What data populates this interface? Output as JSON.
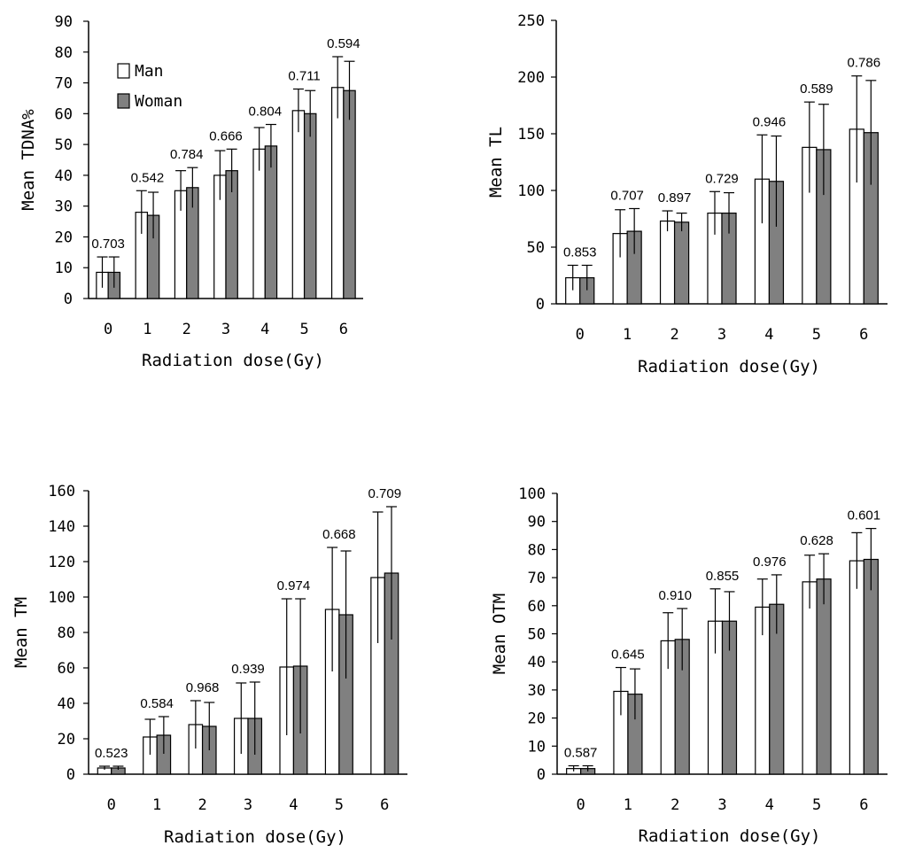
{
  "figure": {
    "colors": {
      "man_fill": "#ffffff",
      "woman_fill": "#808080",
      "stroke": "#000000"
    },
    "legend": [
      "Man",
      "Woman"
    ]
  },
  "chart_data": [
    {
      "type": "bar",
      "title": "",
      "xlabel": "Radiation dose(Gy)",
      "ylabel": "Mean TDNA%",
      "categories": [
        "0",
        "1",
        "2",
        "3",
        "4",
        "5",
        "6"
      ],
      "ylim": [
        0,
        90
      ],
      "yticks": [
        0,
        10,
        20,
        30,
        40,
        50,
        60,
        70,
        80,
        90
      ],
      "series": [
        {
          "name": "Man",
          "values": [
            8.5,
            28,
            35,
            40,
            48.5,
            61,
            68.5
          ],
          "errors": [
            5,
            7,
            6.5,
            8,
            7,
            7,
            10
          ]
        },
        {
          "name": "Woman",
          "values": [
            8.5,
            27,
            36,
            41.5,
            49.5,
            60,
            67.5
          ],
          "errors": [
            5,
            7.5,
            6.5,
            7,
            7,
            7.5,
            9.5
          ]
        }
      ],
      "p_values": [
        "0.703",
        "0.542",
        "0.784",
        "0.666",
        "0.804",
        "0.711",
        "0.594"
      ],
      "legend_position": "top-left"
    },
    {
      "type": "bar",
      "title": "",
      "xlabel": "Radiation dose(Gy)",
      "ylabel": "Mean TL",
      "categories": [
        "0",
        "1",
        "2",
        "3",
        "4",
        "5",
        "6"
      ],
      "ylim": [
        0,
        250
      ],
      "yticks": [
        0,
        50,
        100,
        150,
        200,
        250
      ],
      "series": [
        {
          "name": "Man",
          "values": [
            23,
            62,
            73,
            80,
            110,
            138,
            154
          ],
          "errors": [
            11,
            21,
            9,
            19,
            39,
            40,
            47
          ]
        },
        {
          "name": "Woman",
          "values": [
            23,
            64,
            72,
            80,
            108,
            136,
            151
          ],
          "errors": [
            11,
            20,
            8,
            18,
            40,
            40,
            46
          ]
        }
      ],
      "p_values": [
        "0.853",
        "0.707",
        "0.897",
        "0.729",
        "0.946",
        "0.589",
        "0.786"
      ]
    },
    {
      "type": "bar",
      "title": "",
      "xlabel": "Radiation dose(Gy)",
      "ylabel": "Mean TM",
      "categories": [
        "0",
        "1",
        "2",
        "3",
        "4",
        "5",
        "6"
      ],
      "ylim": [
        0,
        160
      ],
      "yticks": [
        0,
        20,
        40,
        60,
        80,
        100,
        120,
        140,
        160
      ],
      "series": [
        {
          "name": "Man",
          "values": [
            3.5,
            21,
            28,
            31.5,
            60.5,
            93,
            111
          ],
          "errors": [
            1,
            10,
            13.5,
            20,
            38.5,
            35,
            37
          ]
        },
        {
          "name": "Woman",
          "values": [
            3.5,
            22,
            27,
            31.5,
            61,
            90,
            113.5
          ],
          "errors": [
            1,
            10.5,
            13.5,
            20.5,
            38,
            36,
            37.5
          ]
        }
      ],
      "p_values": [
        "0.523",
        "0.584",
        "0.968",
        "0.939",
        "0.974",
        "0.668",
        "0.709"
      ]
    },
    {
      "type": "bar",
      "title": "",
      "xlabel": "Radiation dose(Gy)",
      "ylabel": "Mean OTM",
      "categories": [
        "0",
        "1",
        "2",
        "3",
        "4",
        "5",
        "6"
      ],
      "ylim": [
        0,
        100
      ],
      "yticks": [
        0,
        10,
        20,
        30,
        40,
        50,
        60,
        70,
        80,
        90,
        100
      ],
      "series": [
        {
          "name": "Man",
          "values": [
            2,
            29.5,
            47.5,
            54.5,
            59.5,
            68.5,
            76
          ],
          "errors": [
            1,
            8.5,
            10,
            11.5,
            10,
            9.5,
            10
          ]
        },
        {
          "name": "Woman",
          "values": [
            2,
            28.5,
            48,
            54.5,
            60.5,
            69.5,
            76.5
          ],
          "errors": [
            1,
            9,
            11,
            10.5,
            10.5,
            9,
            11
          ]
        }
      ],
      "p_values": [
        "0.587",
        "0.645",
        "0.910",
        "0.855",
        "0.976",
        "0.628",
        "0.601"
      ]
    }
  ]
}
